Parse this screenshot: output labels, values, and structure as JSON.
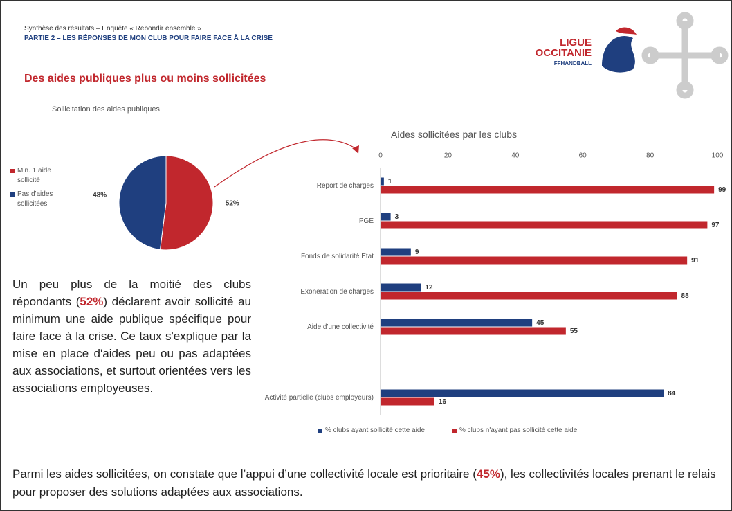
{
  "header": {
    "subtitle": "Synthèse des résultats – Enquête « Rebondir ensemble »",
    "part": "PARTIE 2 – LES RÉPONSES DE MON CLUB POUR FAIRE FACE À LA CRISE",
    "title": "Des aides publiques plus ou moins sollicitées"
  },
  "logo": {
    "line1": "LIGUE",
    "line2": "OCCITANIE",
    "line3": "FFHANDBALL"
  },
  "chart_data": [
    {
      "type": "pie",
      "title": "Sollicitation des aides publiques",
      "categories": [
        "Min. 1 aide sollicité",
        "Pas d'aides sollicitées"
      ],
      "values": [
        52,
        48
      ],
      "value_labels": [
        "52%",
        "48%"
      ],
      "colors": [
        "#c1272d",
        "#1f3f7f"
      ]
    },
    {
      "type": "hbar",
      "title": "Aides sollicitées par les clubs",
      "categories": [
        "Report de charges",
        "PGE",
        "Fonds de solidarité Etat",
        "Exoneration de charges",
        "Aide d'une collectivité",
        null,
        "Activité partielle (clubs employeurs)"
      ],
      "series": [
        {
          "name": "% clubs ayant sollicité cette aide",
          "color": "#1f3f7f",
          "values": [
            1,
            3,
            9,
            12,
            45,
            null,
            84
          ]
        },
        {
          "name": "% clubs n'ayant pas sollicité cette aide",
          "color": "#c1272d",
          "values": [
            99,
            97,
            91,
            88,
            55,
            null,
            16
          ]
        }
      ],
      "xlim": [
        0,
        100
      ],
      "xticks": [
        0,
        20,
        40,
        60,
        80,
        100
      ]
    }
  ],
  "paragraphs": [
    {
      "before": "Un peu plus de la moitié des clubs répondants (",
      "highlight": "52%",
      "after": ") déclarent avoir sollicité au minimum une aide publique spécifique pour faire face à la crise. Ce taux s'explique par la mise en place d'aides peu ou pas adaptées aux associations, et surtout orientées vers les associations employeuses."
    },
    {
      "before": "Parmi les aides sollicitées, on constate que l’appui d’une collectivité locale est prioritaire (",
      "highlight": "45%",
      "after": "), les collectivités locales prenant le relais pour proposer des solutions adaptées aux associations."
    }
  ]
}
